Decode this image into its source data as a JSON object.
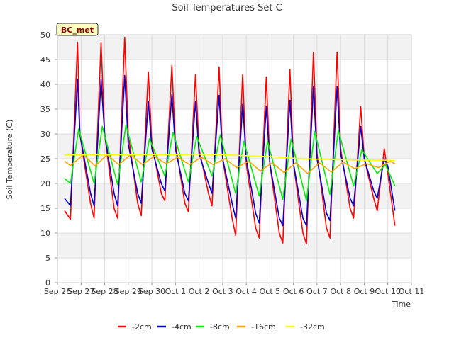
{
  "chart_data": {
    "type": "line",
    "title": "Soil Temperatures Set C",
    "xlabel": "Time",
    "ylabel": "Soil Temperature (C)",
    "ylim": [
      0,
      50
    ],
    "xlim": [
      0,
      15
    ],
    "y_ticks": [
      "0",
      "5",
      "10",
      "15",
      "20",
      "25",
      "30",
      "35",
      "40",
      "45",
      "50"
    ],
    "x_ticks": [
      "Sep 26",
      "Sep 27",
      "Sep 28",
      "Sep 29",
      "Sep 30",
      "Oct 1",
      "Oct 2",
      "Oct 3",
      "Oct 4",
      "Oct 5",
      "Oct 6",
      "Oct 7",
      "Oct 8",
      "Oct 9",
      "Oct 10",
      "Oct 11"
    ],
    "grid": true,
    "legend_position": "bottom",
    "annotation": "BC_met",
    "series": [
      {
        "name": "-2cm",
        "color": "#ff0000",
        "x": [
          0.3,
          0.55,
          0.85,
          0.95,
          1.4,
          1.55,
          1.85,
          2.0,
          2.4,
          2.55,
          2.85,
          3.0,
          3.4,
          3.55,
          3.85,
          4.0,
          4.4,
          4.55,
          4.85,
          5.0,
          5.4,
          5.55,
          5.85,
          6.0,
          6.4,
          6.55,
          6.85,
          7.0,
          7.4,
          7.55,
          7.85,
          8.0,
          8.4,
          8.55,
          8.85,
          9.0,
          9.4,
          9.55,
          9.85,
          10.0,
          10.4,
          10.55,
          10.85,
          11.0,
          11.4,
          11.55,
          11.85,
          12.0,
          12.4,
          12.55,
          12.85,
          13.0,
          13.4,
          13.55,
          13.85,
          14.0,
          14.3
        ],
        "y": [
          14.5,
          12.8,
          48.5,
          30,
          16,
          13,
          48.5,
          30,
          15,
          13,
          49.5,
          30,
          16,
          13.5,
          42.5,
          28,
          18,
          16.5,
          43.8,
          28,
          16,
          14.3,
          42,
          27,
          18,
          15.5,
          43.5,
          25,
          13,
          9.5,
          42,
          24,
          11,
          9,
          41.5,
          24,
          10,
          8,
          43,
          24,
          10,
          7.8,
          46.5,
          26,
          11,
          9,
          46.5,
          27,
          15,
          13,
          35.5,
          25,
          17,
          14.5,
          27,
          22,
          11.5
        ]
      },
      {
        "name": "-4cm",
        "color": "#0000cc",
        "x": [
          0.3,
          0.55,
          0.85,
          0.95,
          1.4,
          1.55,
          1.85,
          2.0,
          2.4,
          2.55,
          2.85,
          3.0,
          3.4,
          3.55,
          3.85,
          4.0,
          4.4,
          4.55,
          4.85,
          5.0,
          5.4,
          5.55,
          5.85,
          6.0,
          6.4,
          6.55,
          6.85,
          7.0,
          7.4,
          7.55,
          7.85,
          8.0,
          8.4,
          8.55,
          8.85,
          9.0,
          9.4,
          9.55,
          9.85,
          10.0,
          10.4,
          10.55,
          10.85,
          11.0,
          11.4,
          11.55,
          11.85,
          12.0,
          12.4,
          12.55,
          12.85,
          13.0,
          13.4,
          13.55,
          13.85,
          14.0,
          14.3
        ],
        "y": [
          17,
          15.5,
          41,
          30,
          18,
          15.5,
          41,
          30,
          18,
          15.5,
          41.8,
          28,
          18,
          16,
          36.5,
          27,
          20,
          18.5,
          38,
          27,
          18,
          16.5,
          36.5,
          26,
          20,
          18,
          37.8,
          25,
          16,
          13,
          36,
          25,
          14,
          12,
          35.5,
          24,
          13,
          11.5,
          36.8,
          24,
          13,
          11.5,
          39.5,
          25,
          14,
          12.5,
          39.5,
          26,
          17,
          15.5,
          31.5,
          25,
          18.5,
          17,
          25,
          23.5,
          14.5
        ]
      },
      {
        "name": "-8cm",
        "color": "#00ee00",
        "x": [
          0.3,
          0.55,
          0.9,
          1.55,
          1.9,
          2.55,
          2.9,
          3.55,
          3.9,
          4.55,
          4.9,
          5.55,
          5.9,
          6.55,
          6.9,
          7.55,
          7.9,
          8.55,
          8.9,
          9.55,
          9.9,
          10.55,
          10.9,
          11.55,
          11.9,
          12.55,
          12.9,
          13.55,
          13.9,
          14.3
        ],
        "y": [
          21,
          20,
          31,
          20,
          31.5,
          19.8,
          31.8,
          20.3,
          29,
          21.5,
          30.3,
          20.3,
          29.5,
          21.5,
          29.8,
          18,
          28.5,
          17.5,
          28.5,
          16.8,
          29,
          16.5,
          30.5,
          17.8,
          30.7,
          19.5,
          26.8,
          22,
          23.8,
          19.5
        ]
      },
      {
        "name": "-16cm",
        "color": "#ffa500",
        "x": [
          0.3,
          0.55,
          1.1,
          1.6,
          2.1,
          2.6,
          3.1,
          3.6,
          4.1,
          4.6,
          5.1,
          5.6,
          6.1,
          6.6,
          7.1,
          7.6,
          8.1,
          8.6,
          9.1,
          9.6,
          10.1,
          10.6,
          11.1,
          11.6,
          12.1,
          12.6,
          13.1,
          13.6,
          14.1,
          14.3
        ],
        "y": [
          24.5,
          23.6,
          25.8,
          23.5,
          25.8,
          23.8,
          25.8,
          23.8,
          25.5,
          24,
          25.3,
          23.8,
          25.3,
          23.8,
          25,
          23.2,
          24.5,
          22.5,
          24.2,
          22.2,
          24.2,
          22.0,
          24.2,
          22.3,
          24.3,
          23.0,
          24.0,
          23.2,
          24.5,
          24.0
        ]
      },
      {
        "name": "-32cm",
        "color": "#ffff00",
        "x": [
          0.3,
          1.0,
          2.0,
          3.0,
          4.0,
          5.0,
          6.0,
          7.0,
          8.0,
          9.0,
          10.0,
          11.0,
          12.0,
          13.0,
          14.0,
          14.3
        ],
        "y": [
          25.7,
          25.8,
          25.8,
          25.8,
          25.8,
          25.8,
          25.9,
          25.8,
          25.6,
          25.4,
          25.1,
          24.9,
          24.8,
          24.7,
          24.7,
          24.6
        ]
      }
    ]
  }
}
